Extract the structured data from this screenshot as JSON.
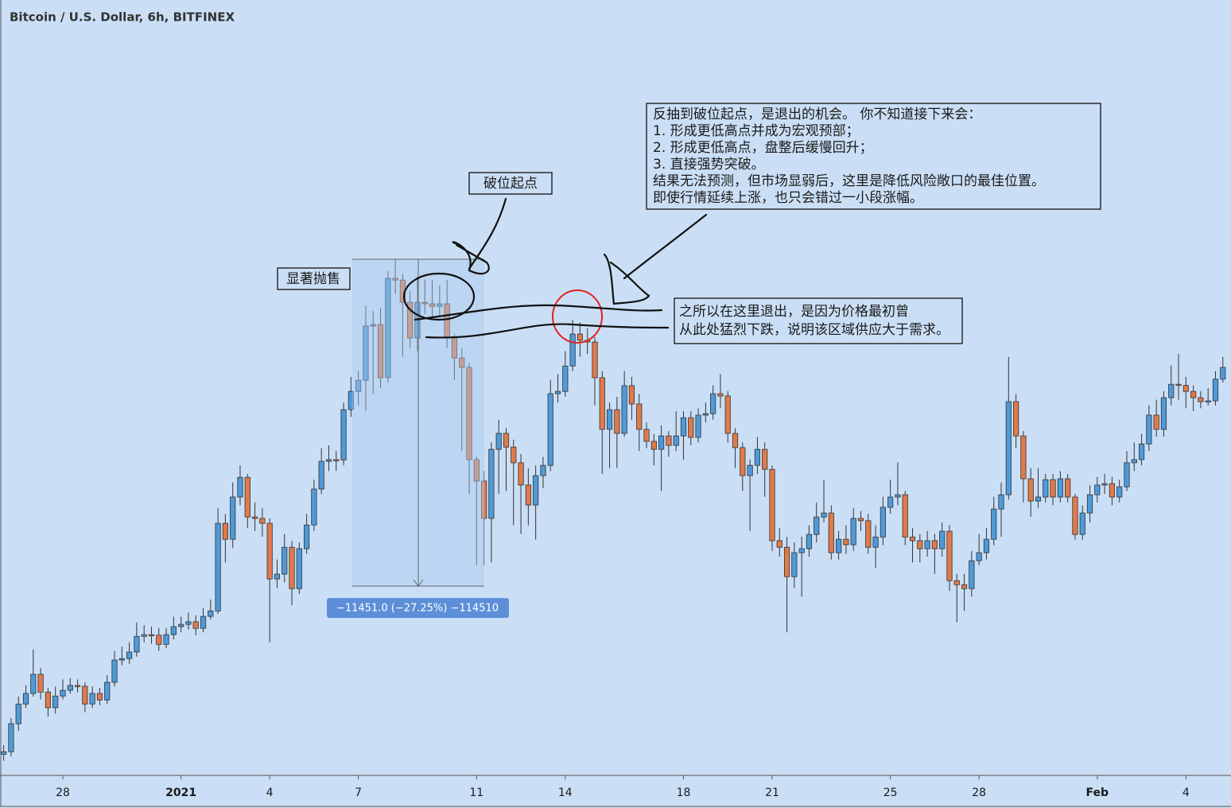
{
  "chart_data": {
    "type": "candlestick",
    "title": "Bitcoin / U.S. Dollar, 6h, BITFINEX",
    "up_color": "#4f9ad8",
    "down_color": "#e07a4a",
    "xlim": [
      -0.5,
      166.1
    ],
    "ylim": [
      23940,
      51100
    ],
    "xticks": [
      {
        "value": 8,
        "label": "28"
      },
      {
        "value": 24,
        "label": "2021"
      },
      {
        "value": 36,
        "label": "4"
      },
      {
        "value": 48,
        "label": "7"
      },
      {
        "value": 64,
        "label": "11"
      },
      {
        "value": 76,
        "label": "14"
      },
      {
        "value": 92,
        "label": "18"
      },
      {
        "value": 104,
        "label": "21"
      },
      {
        "value": 120,
        "label": "25"
      },
      {
        "value": 132,
        "label": "28"
      },
      {
        "value": 148,
        "label": "Feb"
      },
      {
        "value": 160,
        "label": "4"
      }
    ],
    "open": [
      24680,
      24770,
      25750,
      26440,
      26810,
      27480,
      26860,
      26310,
      26720,
      26920,
      27090,
      27060,
      26440,
      26810,
      26580,
      27200,
      27980,
      28030,
      28260,
      28810,
      28870,
      28850,
      28530,
      28870,
      29150,
      29230,
      29320,
      29090,
      29510,
      29700,
      32770,
      32210,
      33690,
      34380,
      32990,
      32940,
      32770,
      30820,
      30990,
      31930,
      30480,
      31880,
      32710,
      33970,
      34940,
      35000,
      34990,
      36750,
      37390,
      37780,
      39680,
      39730,
      37870,
      41350,
      41290,
      40510,
      39260,
      40510,
      40460,
      40370,
      40460,
      39260,
      38560,
      38230,
      35000,
      34250,
      32940,
      35360,
      35920,
      35440,
      34890,
      34110,
      33410,
      34440,
      34800,
      37310,
      37390,
      38280,
      39400,
      39180,
      39120,
      37870,
      36060,
      36750,
      35920,
      37590,
      36950,
      36060,
      35640,
      35360,
      35830,
      35500,
      35830,
      36470,
      35780,
      36560,
      36610,
      37310,
      37230,
      35920,
      35420,
      34440,
      34800,
      35360,
      34660,
      32160,
      31930,
      30900,
      31740,
      31880,
      32380,
      32990,
      33130,
      31740,
      32210,
      32020,
      32940,
      32860,
      31930,
      32290,
      33330,
      33690,
      33770,
      32290,
      32160,
      31880,
      32160,
      31880,
      32490,
      30760,
      30620,
      30480,
      31460,
      31740,
      32210,
      33270,
      33770,
      37030,
      35830,
      34330,
      33550,
      33690,
      34300,
      33690,
      34330,
      33690,
      32380,
      33130,
      33770,
      34110,
      34160,
      33690,
      34050,
      34890,
      35000,
      35550,
      36560,
      36060,
      37170,
      37640,
      37600,
      37390,
      37170,
      37030,
      37060,
      37820
    ],
    "high": [
      25000,
      25950,
      26700,
      27100,
      28350,
      27700,
      27000,
      27050,
      27300,
      27350,
      27300,
      27200,
      27050,
      27000,
      27450,
      28300,
      28450,
      28600,
      29300,
      29200,
      29150,
      29100,
      29100,
      29500,
      29500,
      29650,
      29550,
      29800,
      30100,
      33300,
      33100,
      34200,
      34800,
      34500,
      33500,
      33300,
      32950,
      31500,
      32400,
      32150,
      32100,
      33100,
      34300,
      35400,
      35500,
      35300,
      37000,
      37900,
      38100,
      40400,
      40200,
      40300,
      41600,
      42000,
      41500,
      40900,
      41400,
      41300,
      41300,
      41100,
      41300,
      39400,
      38900,
      38400,
      35100,
      34600,
      35600,
      36400,
      36100,
      35700,
      35200,
      34700,
      34800,
      35100,
      37800,
      38000,
      38800,
      39900,
      39800,
      39600,
      39300,
      38100,
      37000,
      37200,
      38100,
      37900,
      37300,
      36300,
      35900,
      36200,
      36000,
      36700,
      36700,
      36700,
      36800,
      37000,
      37600,
      38000,
      37400,
      36100,
      35600,
      35000,
      35800,
      35600,
      34800,
      32600,
      32300,
      32100,
      32300,
      32700,
      33500,
      34300,
      33400,
      32500,
      32700,
      33300,
      33200,
      33100,
      32700,
      33700,
      34300,
      34900,
      33900,
      32600,
      32400,
      32500,
      32400,
      32800,
      32700,
      31000,
      31000,
      31800,
      32400,
      32600,
      33700,
      34200,
      38600,
      37300,
      36000,
      34700,
      34700,
      34500,
      34500,
      34600,
      34500,
      33800,
      33400,
      34100,
      34400,
      34500,
      34400,
      34300,
      35300,
      35600,
      35900,
      36900,
      37100,
      37400,
      38300,
      38700,
      37900,
      37600,
      37400,
      37500,
      38100,
      38600
    ],
    "low": [
      24450,
      24600,
      25500,
      26300,
      26700,
      26600,
      26000,
      26100,
      26600,
      26800,
      26850,
      26150,
      26300,
      26400,
      26450,
      27050,
      27800,
      27850,
      28100,
      28600,
      28550,
      28300,
      28400,
      28700,
      28950,
      29050,
      28850,
      28950,
      29400,
      29600,
      31400,
      31900,
      33400,
      32600,
      32500,
      32300,
      28600,
      30500,
      30700,
      29900,
      30300,
      31700,
      32500,
      33800,
      34600,
      34600,
      34800,
      36500,
      36900,
      36700,
      37300,
      37500,
      37700,
      40800,
      38600,
      38900,
      38800,
      40100,
      40000,
      40000,
      38900,
      37800,
      35300,
      33800,
      31300,
      31300,
      31400,
      33800,
      33900,
      32700,
      32400,
      32700,
      32200,
      34000,
      34600,
      37000,
      37200,
      38100,
      38600,
      38700,
      36900,
      34500,
      34700,
      34700,
      35800,
      36400,
      35300,
      35400,
      34800,
      33900,
      35100,
      35300,
      35000,
      35500,
      35600,
      36300,
      36400,
      36800,
      35600,
      34700,
      33900,
      32500,
      34500,
      33700,
      31800,
      31600,
      28950,
      30500,
      30200,
      31600,
      32100,
      32800,
      31500,
      31500,
      31700,
      31800,
      32500,
      31700,
      31200,
      32000,
      33100,
      33400,
      32000,
      31400,
      31400,
      31600,
      31000,
      31600,
      30400,
      29300,
      29700,
      30200,
      31300,
      31500,
      32000,
      32300,
      33600,
      35400,
      33500,
      33000,
      33300,
      33500,
      33400,
      33500,
      33500,
      32200,
      32200,
      32800,
      33500,
      33800,
      33400,
      33500,
      33900,
      34600,
      34800,
      35300,
      35800,
      35800,
      36900,
      37100,
      36800,
      36700,
      36800,
      36900,
      36900,
      37700
    ],
    "close": [
      24770,
      25750,
      26440,
      26810,
      27480,
      26860,
      26310,
      26720,
      26920,
      27090,
      27060,
      26440,
      26810,
      26580,
      27200,
      27980,
      28030,
      28260,
      28810,
      28870,
      28850,
      28530,
      28870,
      29150,
      29230,
      29320,
      29090,
      29510,
      29700,
      32770,
      32210,
      33690,
      34380,
      32990,
      32940,
      32770,
      30820,
      30990,
      31930,
      30480,
      31880,
      32710,
      33970,
      34940,
      35000,
      34990,
      36750,
      37390,
      37780,
      39680,
      39730,
      37870,
      41350,
      41290,
      40510,
      39260,
      40510,
      40460,
      40370,
      40460,
      39260,
      38560,
      38230,
      35000,
      34250,
      32940,
      35360,
      35920,
      35440,
      34890,
      34110,
      33410,
      34440,
      34800,
      37310,
      37390,
      38280,
      39400,
      39180,
      39120,
      37870,
      36060,
      36750,
      35920,
      37590,
      36950,
      36060,
      35640,
      35360,
      35830,
      35500,
      35830,
      36470,
      35780,
      36560,
      36610,
      37310,
      37230,
      35920,
      35420,
      34440,
      34800,
      35360,
      34660,
      32160,
      31930,
      30900,
      31740,
      31880,
      32380,
      32990,
      33130,
      31740,
      32210,
      32020,
      32940,
      32860,
      31930,
      32290,
      33330,
      33690,
      33770,
      32290,
      32160,
      31880,
      32160,
      31880,
      32490,
      30760,
      30620,
      30480,
      31460,
      31740,
      32210,
      33270,
      33770,
      37030,
      35830,
      34330,
      33550,
      33690,
      34300,
      33690,
      34330,
      33690,
      32380,
      33130,
      33770,
      34110,
      34160,
      33690,
      34050,
      34890,
      35000,
      35550,
      36560,
      36060,
      37170,
      37640,
      37600,
      37390,
      37170,
      37030,
      37060,
      37820,
      38230
    ],
    "annotations": {
      "breakdown": "破位起点",
      "selloff": "显著抛售",
      "plan": [
        "反抽到破位起点，是退出的机会。 你不知道接下来会：",
        "1. 形成更低高点并成为宏观预部；",
        "2. 形成更低高点，盘整后缓慢回升；",
        "3. 直接强势突破。",
        "结果无法预测，但市场显弱后，这里是降低风险敞口的最佳位置。",
        "即使行情延续上涨，也只会错过一小段涨幅。"
      ],
      "reason": [
        "之所以在这里退出，是因为价格最初曾",
        "从此处猛烈下跌，说明该区域供应大于需求。"
      ],
      "measure": "−11451.0 (−27.25%) −114510"
    }
  }
}
